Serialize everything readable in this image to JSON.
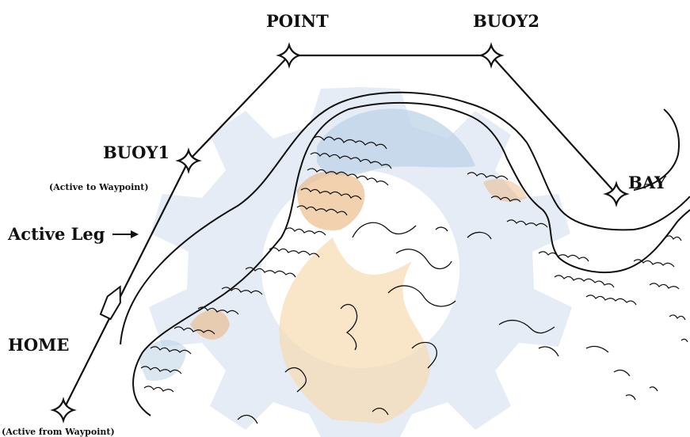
{
  "map": {
    "waypoints": [
      {
        "id": "home",
        "label": "HOME"
      },
      {
        "id": "buoy1",
        "label": "BUOY1"
      },
      {
        "id": "point",
        "label": "POINT"
      },
      {
        "id": "buoy2",
        "label": "BUOY2"
      },
      {
        "id": "bay",
        "label": "BAY"
      }
    ],
    "annotations": {
      "active_to": "(Active to Waypoint)",
      "active_from": "(Active from Waypoint)",
      "active_leg": "Active Leg"
    },
    "colors": {
      "ink": "#111111",
      "watermark_blue": "#cfdcec",
      "watermark_orange": "#f7dcb0",
      "land_blue_tint": "#bcd3e6",
      "land_orange_tint": "#e9b27a"
    },
    "icons": {
      "waypoint": "waypoint-star-icon",
      "boat": "boat-icon",
      "arrow": "arrow-right-icon"
    }
  }
}
